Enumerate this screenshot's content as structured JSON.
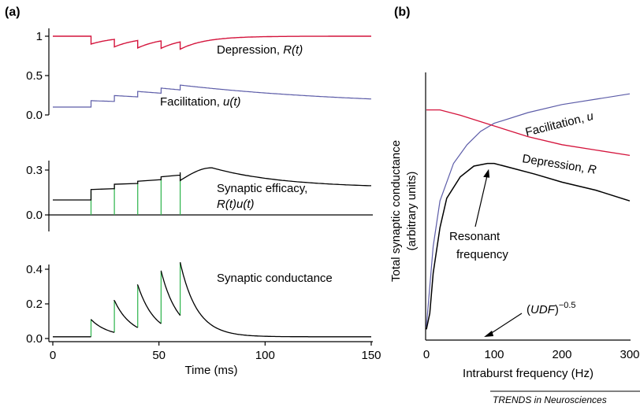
{
  "panels": {
    "a_label": "(a)",
    "b_label": "(b)"
  },
  "credit": "TRENDS in Neurosciences",
  "chart_data": [
    {
      "id": "a1",
      "type": "line",
      "ylim": [
        0,
        1
      ],
      "yticks": [
        "1",
        "0.5",
        "0.0"
      ],
      "ytick_values": [
        1,
        0.5,
        0
      ],
      "spike_times": [
        18,
        29,
        40,
        51,
        60
      ],
      "series": [
        {
          "name": "Depression, R(t)",
          "name_plain": "Depression, ",
          "name_ital": "R(t)",
          "color": "#d4143c",
          "baseline": 1.0,
          "drop_factor": 0.1,
          "tau_ms": 12
        },
        {
          "name": "Facilitation, u(t)",
          "name_plain": "Facilitation, ",
          "name_ital": "u(t)",
          "color": "#5c5ca8",
          "baseline": 0.1,
          "U": 0.09,
          "tau_ms": 90
        }
      ]
    },
    {
      "id": "a2",
      "type": "line",
      "ylim": [
        0,
        0.3
      ],
      "yticks": [
        "0.3",
        "0.0"
      ],
      "ytick_values": [
        0.3,
        0.0
      ],
      "spike_times": [
        18,
        29,
        40,
        51,
        60
      ],
      "spike_color": "#2bb34a",
      "series": [
        {
          "name": "Synaptic efficacy, R(t)u(t)",
          "label_line1": "Synaptic efficacy,",
          "label_line2": "R(t)u(t)",
          "color": "#000000",
          "peak_value": 0.315,
          "peak_time_ms": 75,
          "end_value": 0.195
        }
      ]
    },
    {
      "id": "a3",
      "type": "line",
      "ylim": [
        0,
        0.45
      ],
      "yticks": [
        "0.4",
        "0.2",
        "0.0"
      ],
      "ytick_values": [
        0.4,
        0.2,
        0.0
      ],
      "xlim": [
        0,
        150
      ],
      "xticks": [
        "0",
        "50",
        "100",
        "150"
      ],
      "xtick_values": [
        0,
        50,
        100,
        150
      ],
      "xlabel": "Time (ms)",
      "spike_times": [
        18,
        29,
        40,
        51,
        60
      ],
      "peaks": [
        0.11,
        0.22,
        0.31,
        0.39,
        0.44
      ],
      "baseline": 0.01,
      "tau_ms": 8,
      "series": [
        {
          "name": "Synaptic conductance",
          "color": "#000000"
        }
      ]
    },
    {
      "id": "b",
      "type": "line",
      "xlim": [
        0,
        300
      ],
      "xticks": [
        "0",
        "100",
        "200",
        "300"
      ],
      "xtick_values": [
        0,
        100,
        200,
        300
      ],
      "xlabel": "Intraburst frequency (Hz)",
      "ylabel_line1": "Total synaptic conductance",
      "ylabel_line2": "(arbitrary units)",
      "series": [
        {
          "name": "Facilitation, u",
          "name_plain": "Facilitation, ",
          "name_ital": "u",
          "color": "#5c5ca8",
          "x": [
            0,
            10,
            20,
            40,
            60,
            80,
            100,
            150,
            200,
            250,
            300
          ],
          "y": [
            0.05,
            0.35,
            0.52,
            0.66,
            0.73,
            0.78,
            0.81,
            0.85,
            0.88,
            0.9,
            0.92
          ]
        },
        {
          "name": "Depression, R",
          "name_plain": "Depression, ",
          "name_ital": "R",
          "color": "#d4143c",
          "x": [
            0,
            20,
            50,
            100,
            150,
            200,
            250,
            300
          ],
          "y": [
            0.86,
            0.86,
            0.84,
            0.8,
            0.76,
            0.73,
            0.71,
            0.69
          ]
        },
        {
          "name": "Total conductance",
          "color": "#000000",
          "x": [
            0,
            5,
            10,
            20,
            30,
            50,
            70,
            90,
            100,
            130,
            160,
            200,
            250,
            300
          ],
          "y": [
            0.04,
            0.1,
            0.25,
            0.42,
            0.53,
            0.61,
            0.65,
            0.66,
            0.66,
            0.64,
            0.62,
            0.59,
            0.56,
            0.52
          ]
        }
      ],
      "annotations": [
        {
          "text_line1": "Resonant",
          "text_line2": "frequency",
          "arrow_to_x": 92
        },
        {
          "text_prefix": "(",
          "text_ital": "UDF",
          "text_suffix": ")",
          "text_sup": "−0.5",
          "arrow_to_x": 85
        }
      ],
      "ylim": [
        0,
        1
      ]
    }
  ]
}
